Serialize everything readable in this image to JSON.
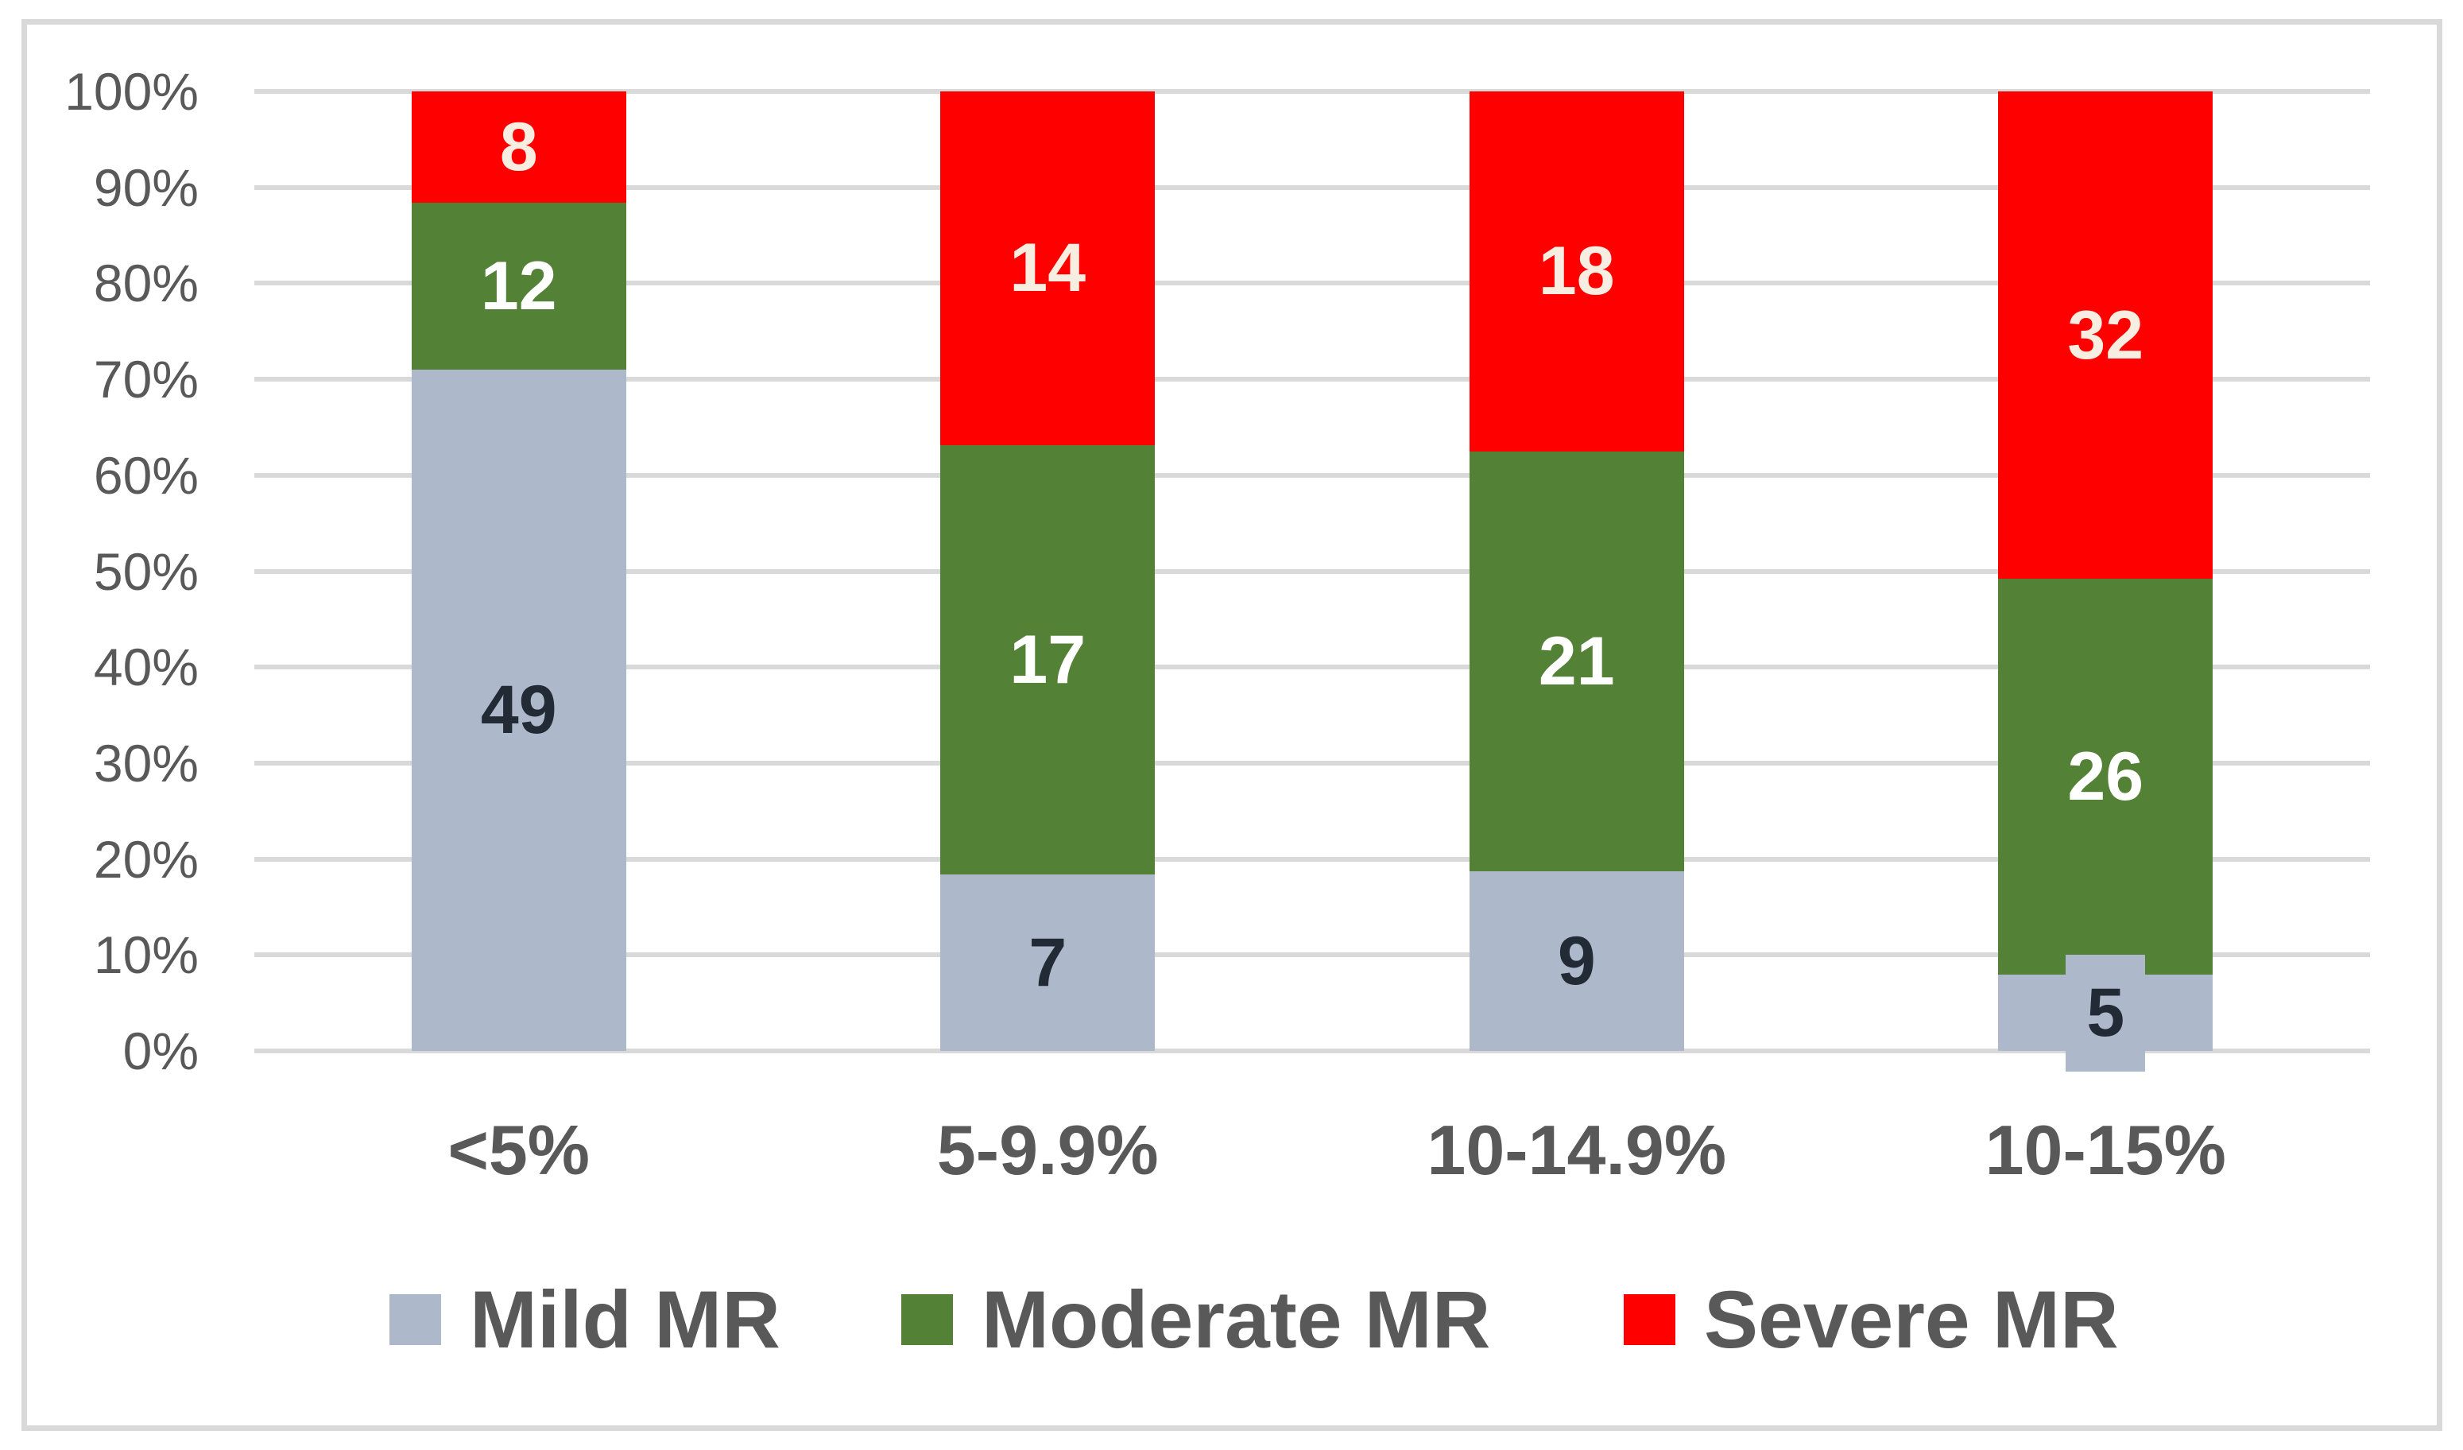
{
  "chart_data": {
    "type": "bar",
    "variant": "stacked-100-percent-column",
    "title": "",
    "xlabel": "",
    "ylabel": "",
    "categories": [
      "<5%",
      "5-9.9%",
      "10-14.9%",
      "10-15%"
    ],
    "series": [
      {
        "name": "Mild MR",
        "color": "#ADB9CA",
        "label_color": "#222A35",
        "values": [
          49,
          7,
          9,
          5
        ]
      },
      {
        "name": "Moderate MR",
        "color": "#538135",
        "label_color": "#FFFFFF",
        "values": [
          12,
          17,
          21,
          26
        ]
      },
      {
        "name": "Severe MR",
        "color": "#FE0000",
        "label_color": "#F7EDE0",
        "values": [
          8,
          14,
          18,
          32
        ]
      }
    ],
    "y_axis": {
      "tick_labels": [
        "0%",
        "10%",
        "20%",
        "30%",
        "40%",
        "50%",
        "60%",
        "70%",
        "80%",
        "90%",
        "100%"
      ],
      "min": 0,
      "max": 100,
      "step": 10
    },
    "gridlines": true,
    "legend_position": "bottom"
  },
  "colors": {
    "gridline": "#D9D9D9",
    "chart_border": "#D9D9D9",
    "axis_text": "#595959",
    "category_text": "#595959",
    "legend_text": "#595959",
    "background": "#FFFFFF"
  }
}
